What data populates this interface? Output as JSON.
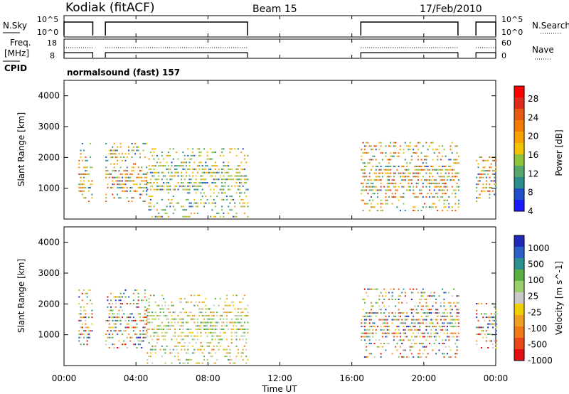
{
  "header": {
    "station": "Kodiak (fitACF)",
    "beam": "Beam 15",
    "date": "17/Feb/2010"
  },
  "strip_labels": {
    "nsky": "N.Sky",
    "freq": "Freq.",
    "freq_unit": "[MHz]",
    "cpid": "CPID",
    "nsearch": "N.Search",
    "nave": "Nave",
    "cpid_value": "normalsound (fast) 157"
  },
  "colors": {
    "power_scale": [
      "#1a1aff",
      "#1f4fc8",
      "#2c8d8d",
      "#55a86a",
      "#8cc43c",
      "#f2c200",
      "#f7a000",
      "#f07d00",
      "#e85a10",
      "#e12b1a",
      "#ff0000"
    ],
    "velocity_scale": [
      "#2028b8",
      "#2a60c8",
      "#2a9090",
      "#58b040",
      "#9ad06c",
      "#c8c8c8",
      "#f0d000",
      "#f0a020",
      "#f07a18",
      "#e84818",
      "#e01010"
    ]
  },
  "chart_data": [
    {
      "type": "line",
      "name": "noise-strip",
      "left_label": "N.Sky",
      "right_label": "N.Search",
      "left_ticks": [
        "10^5",
        "10^0"
      ],
      "right_ticks": [
        "10^5",
        "10^0"
      ],
      "operating_intervals_hours": [
        [
          0.0,
          1.6
        ],
        [
          2.3,
          10.2
        ],
        [
          16.5,
          21.9
        ],
        [
          22.9,
          24.0
        ]
      ]
    },
    {
      "type": "line",
      "name": "frequency-strip",
      "left_label": "Freq. [MHz]",
      "right_label": "Nave",
      "left_ticks": [
        "18",
        "8"
      ],
      "right_ticks": [
        "60",
        "0"
      ]
    },
    {
      "type": "heatmap",
      "name": "power-panel",
      "ylabel": "Slant Range [km]",
      "yticks": [
        "4000",
        "3000",
        "2000",
        "1000"
      ],
      "ylim": [
        0,
        4500
      ],
      "colorbar_label": "Power [dB]",
      "colorbar_ticks": [
        "28",
        "24",
        "20",
        "16",
        "12",
        "8",
        "4"
      ],
      "clusters": [
        {
          "t": [
            0.8,
            1.6
          ],
          "r": [
            600,
            2500
          ],
          "p": [
            4,
            28
          ]
        },
        {
          "t": [
            2.3,
            4.6
          ],
          "r": [
            600,
            2500
          ],
          "p": [
            4,
            28
          ]
        },
        {
          "t": [
            4.6,
            10.2
          ],
          "r": [
            100,
            2300
          ],
          "p": [
            4,
            20
          ]
        },
        {
          "t": [
            16.5,
            21.9
          ],
          "r": [
            300,
            2500
          ],
          "p": [
            4,
            28
          ]
        },
        {
          "t": [
            22.9,
            24.0
          ],
          "r": [
            600,
            2100
          ],
          "p": [
            4,
            28
          ]
        }
      ]
    },
    {
      "type": "heatmap",
      "name": "velocity-panel",
      "xlabel": "Time UT",
      "ylabel": "Slant Range [km]",
      "yticks": [
        "4000",
        "3000",
        "2000",
        "1000"
      ],
      "ylim": [
        0,
        4500
      ],
      "xticks": [
        "00:00",
        "04:00",
        "08:00",
        "12:00",
        "16:00",
        "20:00",
        "00:00"
      ],
      "xlim": [
        0,
        24
      ],
      "colorbar_label": "Velocity [m s^-1]",
      "colorbar_ticks": [
        "1000",
        "500",
        "100",
        "25",
        "-25",
        "-100",
        "-500",
        "-1000"
      ],
      "clusters": [
        {
          "t": [
            0.8,
            1.6
          ],
          "r": [
            600,
            2500
          ],
          "v": [
            -1000,
            1000
          ]
        },
        {
          "t": [
            2.3,
            4.6
          ],
          "r": [
            600,
            2500
          ],
          "v": [
            -1000,
            1000
          ]
        },
        {
          "t": [
            4.6,
            10.2
          ],
          "r": [
            100,
            2300
          ],
          "v": [
            -500,
            500
          ]
        },
        {
          "t": [
            16.5,
            21.9
          ],
          "r": [
            300,
            2500
          ],
          "v": [
            -1000,
            1000
          ]
        },
        {
          "t": [
            22.9,
            24.0
          ],
          "r": [
            600,
            2100
          ],
          "v": [
            -1000,
            1000
          ]
        }
      ]
    }
  ]
}
